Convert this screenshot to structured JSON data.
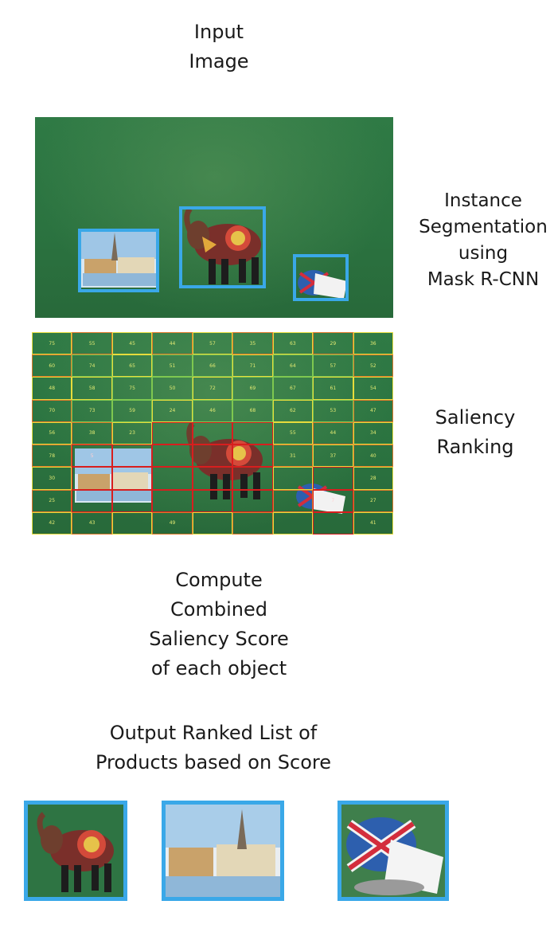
{
  "labels": {
    "input_image": [
      "Input",
      "Image"
    ],
    "instance_segmentation": [
      "Instance",
      "Segmentation",
      "using",
      "Mask R-CNN"
    ],
    "saliency_ranking": [
      "Saliency",
      "Ranking"
    ],
    "compute_score": [
      "Compute",
      "Combined",
      "Saliency Score",
      "of each object"
    ],
    "output_list": [
      "Output Ranked List of",
      "Products based on Score"
    ]
  },
  "colors": {
    "bbox": "#3aa8e8",
    "scene_green": "#2e7443",
    "grid_green": "#7ec850",
    "grid_yellow": "#e6dc3c",
    "grid_orange": "#e07a2a",
    "grid_red": "#d81e1e"
  },
  "saliency_grid": {
    "rows": [
      [
        "75",
        "55",
        "45",
        "44",
        "57",
        "35",
        "63",
        "29",
        "36"
      ],
      [
        "60",
        "74",
        "65",
        "51",
        "66",
        "71",
        "64",
        "57",
        "52"
      ],
      [
        "48",
        "58",
        "75",
        "50",
        "72",
        "69",
        "67",
        "61",
        "54"
      ],
      [
        "70",
        "73",
        "59",
        "24",
        "46",
        "68",
        "62",
        "53",
        "47"
      ],
      [
        "56",
        "38",
        "23",
        "",
        "",
        "",
        "55",
        "44",
        "34"
      ],
      [
        "78",
        "5",
        "",
        "",
        "",
        "",
        "31",
        "37",
        "40"
      ],
      [
        "30",
        "",
        "",
        "",
        "",
        "",
        "",
        "",
        "28"
      ],
      [
        "25",
        "",
        "",
        "",
        "",
        "",
        "",
        "7",
        "27"
      ],
      [
        "42",
        "43",
        "",
        "49",
        "",
        "",
        "",
        "",
        "41"
      ]
    ]
  }
}
